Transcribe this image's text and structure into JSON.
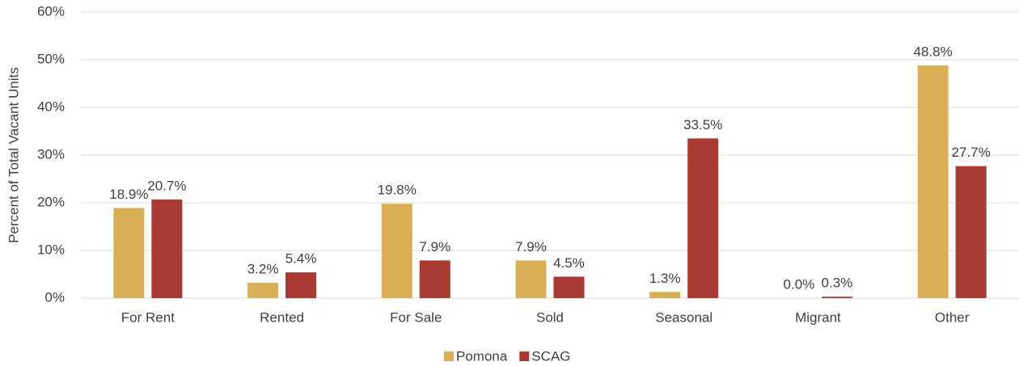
{
  "chart_data": {
    "type": "bar",
    "y_label": "Percent of Total Vacant Units",
    "categories": [
      "For Rent",
      "Rented",
      "For Sale",
      "Sold",
      "Seasonal",
      "Migrant",
      "Other"
    ],
    "series": [
      {
        "name": "Pomona",
        "color": "#d9ae55",
        "values": [
          18.9,
          3.2,
          19.8,
          7.9,
          1.3,
          0.0,
          48.8
        ],
        "value_labels": [
          "18.9%",
          "3.2%",
          "19.8%",
          "7.9%",
          "1.3%",
          "0.0%",
          "48.8%"
        ]
      },
      {
        "name": "SCAG",
        "color": "#a83a32",
        "values": [
          20.7,
          5.4,
          7.9,
          4.5,
          33.5,
          0.3,
          27.7
        ],
        "value_labels": [
          "20.7%",
          "5.4%",
          "7.9%",
          "4.5%",
          "33.5%",
          "0.3%",
          "27.7%"
        ]
      }
    ],
    "ylim": [
      0,
      60
    ],
    "yticks": [
      {
        "value": 0,
        "label": "0%"
      },
      {
        "value": 10,
        "label": "10%"
      },
      {
        "value": 20,
        "label": "20%"
      },
      {
        "value": 30,
        "label": "30%"
      },
      {
        "value": 40,
        "label": "40%"
      },
      {
        "value": 50,
        "label": "50%"
      },
      {
        "value": 60,
        "label": "60%"
      }
    ],
    "grid": true,
    "legend": "bottom"
  }
}
